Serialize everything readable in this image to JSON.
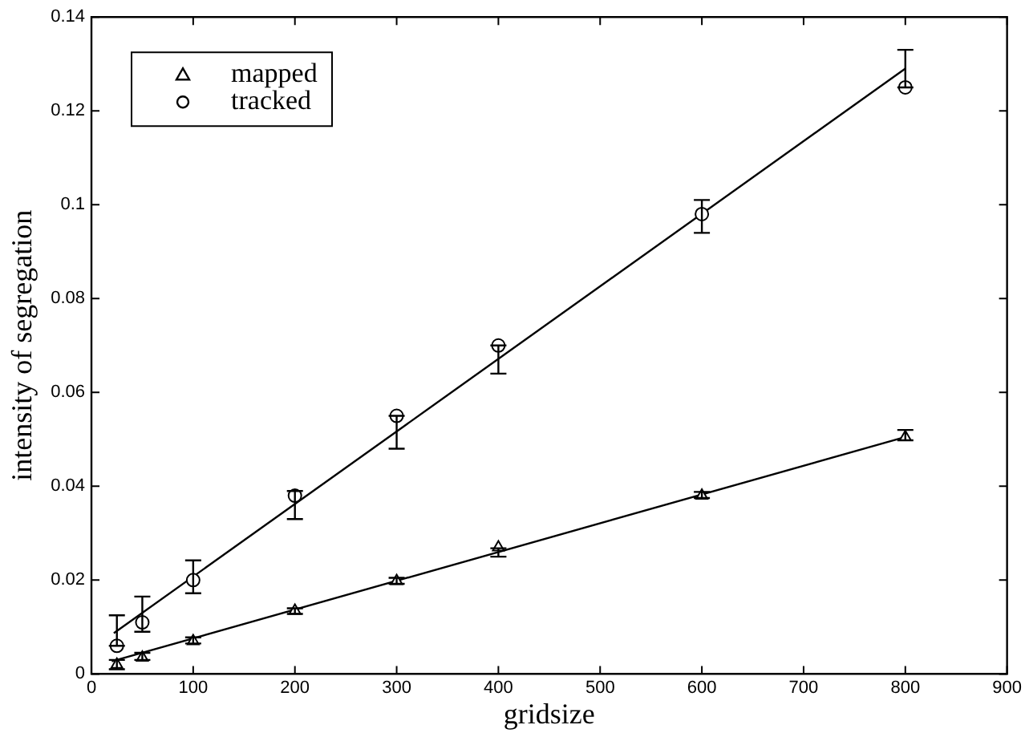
{
  "chart_data": {
    "type": "scatter",
    "xlabel": "gridsize",
    "ylabel": "intensity of segregation",
    "x": [
      25,
      50,
      100,
      200,
      300,
      400,
      600,
      800
    ],
    "series": [
      {
        "name": "mapped",
        "color": "#000000",
        "marker": "triangle",
        "values": [
          0.002,
          0.0035,
          0.007,
          0.0135,
          0.0198,
          0.027,
          0.038,
          0.0505
        ],
        "errors": [
          [
            0.001,
            0.003
          ],
          [
            0.003,
            0.0045
          ],
          [
            0.0065,
            0.0078
          ],
          [
            0.0128,
            0.014
          ],
          [
            0.0192,
            0.0205
          ],
          [
            0.025,
            0.0268
          ],
          [
            0.0375,
            0.0388
          ],
          [
            0.0498,
            0.052
          ]
        ]
      },
      {
        "name": "tracked",
        "color": "#000000",
        "marker": "circle",
        "values": [
          0.006,
          0.011,
          0.02,
          0.038,
          0.055,
          0.07,
          0.098,
          0.125
        ],
        "errors": [
          [
            0.006,
            0.0125
          ],
          [
            0.009,
            0.0165
          ],
          [
            0.0172,
            0.0242
          ],
          [
            0.033,
            0.039
          ],
          [
            0.048,
            0.055
          ],
          [
            0.064,
            0.07
          ],
          [
            0.094,
            0.101
          ],
          [
            0.125,
            0.133
          ]
        ]
      },
      {
        "type": "line",
        "color": "#000000",
        "x": [
          20,
          800
        ],
        "values": [
          0.0027,
          0.0505
        ]
      },
      {
        "type": "line",
        "color": "#000000",
        "x": [
          22,
          800
        ],
        "values": [
          0.0087,
          0.129
        ]
      }
    ],
    "xlim": [
      0,
      900
    ],
    "xticks": [
      0,
      100,
      200,
      300,
      400,
      500,
      600,
      700,
      800,
      900
    ],
    "ylim": [
      0,
      0.14
    ],
    "yticks": [
      0,
      0.02,
      0.04,
      0.06,
      0.08,
      0.1,
      0.12,
      0.14
    ],
    "grid": false,
    "legend": "top left"
  }
}
